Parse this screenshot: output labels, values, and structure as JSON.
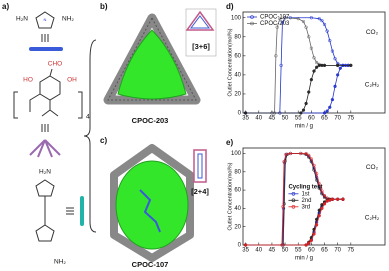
{
  "panels": {
    "a": "a)",
    "b": "b)",
    "c": "c)",
    "cage1": "CPOC-203",
    "cage2": "CPOC-107",
    "topo1": "[3+6]",
    "topo2": "[2+4]",
    "chem": {
      "amine1": "H₂N",
      "amine2": "NH₂",
      "aldehyde": "CHO",
      "hydroxyl1": "HO",
      "hydroxyl2": "OH",
      "count": "4",
      "amine3": "H₂N",
      "amine4": "NH₂"
    }
  },
  "chart_data": [
    {
      "type": "line",
      "label": "d)",
      "x_label": "min / g",
      "y_label": "Outlet Concentration(mol%)",
      "xlim": [
        34,
        88
      ],
      "xticks": [
        35,
        40,
        45,
        50,
        55,
        60,
        65,
        70,
        75
      ],
      "ylim": [
        0,
        106
      ],
      "yticks": [
        0,
        20,
        40,
        60,
        80,
        100
      ],
      "legend": "upper left",
      "annotations": [
        "CO₂",
        "C₂H₂"
      ],
      "series": [
        {
          "name": "CPOC-107",
          "color": "#2233cc",
          "marker": "open",
          "x": [
            35,
            48,
            48.5,
            49,
            50,
            52,
            60,
            63,
            64,
            65,
            66,
            67,
            68,
            69,
            70,
            72,
            74
          ],
          "values": [
            0,
            0,
            50,
            95,
            100,
            100,
            100,
            99,
            97,
            93,
            86,
            76,
            65,
            57,
            52,
            50,
            50
          ]
        },
        {
          "name": "CPOC-203",
          "color": "#666666",
          "marker": "open",
          "x": [
            35,
            45,
            46,
            46.5,
            47,
            48,
            50,
            55,
            57,
            58,
            59,
            60,
            61,
            62,
            63,
            65,
            70,
            75
          ],
          "values": [
            0,
            0,
            0,
            60,
            90,
            99,
            100,
            99,
            96,
            90,
            80,
            68,
            58,
            53,
            51,
            50,
            50,
            50
          ]
        },
        {
          "color": "#2233cc",
          "marker": "filled",
          "x": [
            35,
            65,
            66,
            67,
            68,
            69,
            70,
            71,
            72,
            73,
            74
          ],
          "values": [
            0,
            0,
            2,
            6,
            14,
            28,
            40,
            47,
            50,
            50,
            50
          ]
        },
        {
          "color": "#222222",
          "marker": "filled",
          "x": [
            35,
            56,
            57,
            58,
            59,
            60,
            61,
            62,
            63,
            64,
            65,
            70,
            75
          ],
          "values": [
            0,
            0,
            3,
            10,
            22,
            35,
            44,
            48,
            50,
            50,
            50,
            50,
            50
          ]
        }
      ]
    },
    {
      "type": "line",
      "label": "e)",
      "x_label": "min / g",
      "y_label": "Outlet Concentration(mol%)",
      "xlim": [
        34,
        88
      ],
      "xticks": [
        35,
        40,
        45,
        50,
        55,
        60,
        65,
        70,
        75
      ],
      "ylim": [
        0,
        106
      ],
      "yticks": [
        0,
        20,
        40,
        60,
        80,
        100
      ],
      "legend": "center",
      "legend_title": "Cycling test",
      "annotations": [
        "CO₂",
        "C₂H₂"
      ],
      "series": [
        {
          "name": "1st",
          "color": "#2233cc",
          "marker": "open",
          "x": [
            35,
            49,
            49.4,
            49.8,
            50.5,
            52,
            56,
            58,
            59,
            60,
            61,
            62,
            63,
            64,
            65,
            66,
            68,
            72
          ],
          "values": [
            0,
            0,
            40,
            90,
            99,
            100,
            100,
            99,
            97,
            92,
            84,
            74,
            64,
            57,
            53,
            51,
            50,
            50
          ]
        },
        {
          "name": "2nd",
          "color": "#222222",
          "marker": "open",
          "x": [
            35,
            49.3,
            49.7,
            50.1,
            50.8,
            52,
            56,
            58,
            59,
            60,
            61,
            62,
            63,
            64,
            65,
            66,
            68,
            72
          ],
          "values": [
            0,
            0,
            45,
            92,
            99,
            100,
            100,
            99,
            96,
            91,
            82,
            71,
            62,
            56,
            52,
            51,
            50,
            50
          ]
        },
        {
          "name": "3rd",
          "color": "#dd2222",
          "marker": "open",
          "x": [
            35,
            48.8,
            49.2,
            49.6,
            50.3,
            52,
            56,
            58,
            59,
            60,
            61,
            62,
            63,
            64,
            65,
            66,
            68,
            72
          ],
          "values": [
            0,
            0,
            42,
            91,
            99,
            100,
            100,
            100,
            98,
            94,
            87,
            78,
            67,
            59,
            54,
            51,
            50,
            50
          ]
        },
        {
          "color": "#2233cc",
          "marker": "filled",
          "x": [
            35,
            58,
            59,
            60,
            61,
            62,
            63,
            64,
            65,
            66,
            67,
            68,
            70,
            72
          ],
          "values": [
            0,
            0,
            2,
            6,
            14,
            25,
            35,
            42,
            46,
            48,
            49,
            50,
            50,
            50
          ]
        },
        {
          "color": "#222222",
          "marker": "filled",
          "x": [
            35,
            58,
            59,
            60,
            61,
            62,
            63,
            64,
            65,
            66,
            67,
            68,
            70,
            72
          ],
          "values": [
            0,
            0,
            3,
            8,
            17,
            28,
            38,
            44,
            47,
            49,
            50,
            50,
            50,
            50
          ]
        },
        {
          "color": "#dd2222",
          "marker": "filled",
          "x": [
            35,
            58,
            59,
            60,
            61,
            62,
            63,
            64,
            65,
            66,
            67,
            68,
            70,
            72
          ],
          "values": [
            0,
            0,
            2,
            5,
            12,
            22,
            32,
            40,
            45,
            48,
            49,
            50,
            50,
            50
          ]
        }
      ]
    }
  ]
}
